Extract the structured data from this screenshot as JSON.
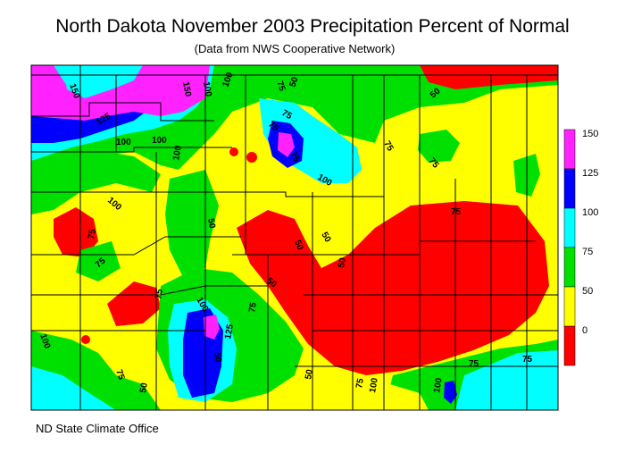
{
  "title": "North Dakota November 2003 Precipitation Percent of Normal",
  "subtitle": "(Data from NWS Cooperative Network)",
  "credit": "ND State Climate Office",
  "legend": [
    {
      "value": "150",
      "color": "#ff22ff"
    },
    {
      "value": "125",
      "color": "#0000ff"
    },
    {
      "value": "100",
      "color": "#00ffff"
    },
    {
      "value": "75",
      "color": "#00e000"
    },
    {
      "value": "50",
      "color": "#ffff00"
    },
    {
      "value": "0",
      "color": "#ff0000"
    }
  ],
  "contour_labels": [
    "150",
    "125",
    "150",
    "100",
    "100",
    "100",
    "100",
    "75",
    "50",
    "50",
    "75",
    "75",
    "100",
    "100",
    "100",
    "75",
    "50",
    "75",
    "75",
    "75",
    "75",
    "50",
    "50",
    "50",
    "50",
    "100",
    "125",
    "75",
    "75",
    "75",
    "75",
    "50",
    "50",
    "50",
    "75",
    "100",
    "100",
    "75",
    "75",
    "100"
  ]
}
